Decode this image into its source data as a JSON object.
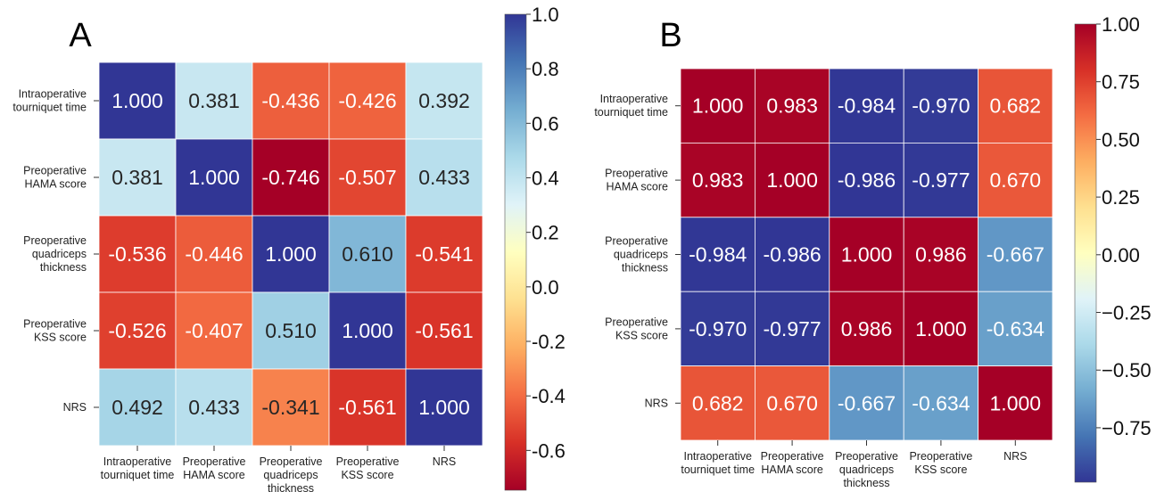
{
  "chart_data": [
    {
      "type": "heatmap",
      "panel_label": "A",
      "rows": [
        "Intraoperative tourniquet time",
        "Preoperative HAMA score",
        "Preoperative quadriceps thickness",
        "Preoperative KSS score",
        "NRS"
      ],
      "row_labels": [
        [
          "Intraoperative",
          "tourniquet time"
        ],
        [
          "Preoperative",
          "HAMA score"
        ],
        [
          "Preoperative",
          "quadriceps",
          "thickness"
        ],
        [
          "Preoperative",
          "KSS score"
        ],
        [
          "NRS"
        ]
      ],
      "col_labels": [
        [
          "Intraoperative",
          "tourniquet time"
        ],
        [
          "Preoperative",
          "HAMA score"
        ],
        [
          "Preoperative",
          "quadriceps",
          "thickness"
        ],
        [
          "Preoperative",
          "KSS score"
        ],
        [
          "NRS"
        ]
      ],
      "values": [
        [
          1.0,
          0.381,
          -0.436,
          -0.426,
          0.392
        ],
        [
          0.381,
          1.0,
          -0.746,
          -0.507,
          0.433
        ],
        [
          -0.536,
          -0.446,
          1.0,
          0.61,
          -0.541
        ],
        [
          -0.526,
          -0.407,
          0.51,
          1.0,
          -0.561
        ],
        [
          0.492,
          0.433,
          -0.341,
          -0.561,
          1.0
        ]
      ],
      "value_labels": [
        [
          "1.000",
          "0.381",
          "-0.436",
          "-0.426",
          "0.392"
        ],
        [
          "0.381",
          "1.000",
          "-0.746",
          "-0.507",
          "0.433"
        ],
        [
          "-0.536",
          "-0.446",
          "1.000",
          "0.610",
          "-0.541"
        ],
        [
          "-0.526",
          "-0.407",
          "0.510",
          "1.000",
          "-0.561"
        ],
        [
          "0.492",
          "0.433",
          "-0.341",
          "-0.561",
          "1.000"
        ]
      ],
      "colormap": "RdYlBu",
      "vmin": -0.746,
      "vmax": 1.0,
      "colorbar_ticks": [
        1.0,
        0.8,
        0.6,
        0.4,
        0.2,
        0.0,
        -0.2,
        -0.4,
        -0.6
      ],
      "colorbar_tick_labels": [
        "1.0",
        "0.8",
        "0.6",
        "0.4",
        "0.2",
        "0.0",
        "-0.2",
        "-0.4",
        "-0.6"
      ],
      "grid": true,
      "colorbar_position": "right"
    },
    {
      "type": "heatmap",
      "panel_label": "B",
      "rows": [
        "Intraoperative tourniquet time",
        "Preoperative HAMA score",
        "Preoperative quadriceps thickness",
        "Preoperative KSS score",
        "NRS"
      ],
      "row_labels": [
        [
          "Intraoperative",
          "tourniquet time"
        ],
        [
          "Preoperative",
          "HAMA score"
        ],
        [
          "Preoperative",
          "quadriceps",
          "thickness"
        ],
        [
          "Preoperative",
          "KSS score"
        ],
        [
          "NRS"
        ]
      ],
      "col_labels": [
        [
          "Intraoperative",
          "tourniquet time"
        ],
        [
          "Preoperative",
          "HAMA score"
        ],
        [
          "Preoperative",
          "quadriceps",
          "thickness"
        ],
        [
          "Preoperative",
          "KSS score"
        ],
        [
          "NRS"
        ]
      ],
      "values": [
        [
          1.0,
          0.983,
          -0.984,
          -0.97,
          0.682
        ],
        [
          0.983,
          1.0,
          -0.986,
          -0.977,
          0.67
        ],
        [
          -0.984,
          -0.986,
          1.0,
          0.986,
          -0.667
        ],
        [
          -0.97,
          -0.977,
          0.986,
          1.0,
          -0.634
        ],
        [
          0.682,
          0.67,
          -0.667,
          -0.634,
          1.0
        ]
      ],
      "value_labels": [
        [
          "1.000",
          "0.983",
          "-0.984",
          "-0.970",
          "0.682"
        ],
        [
          "0.983",
          "1.000",
          "-0.986",
          "-0.977",
          "0.670"
        ],
        [
          "-0.984",
          "-0.986",
          "1.000",
          "0.986",
          "-0.667"
        ],
        [
          "-0.970",
          "-0.977",
          "0.986",
          "1.000",
          "-0.634"
        ],
        [
          "0.682",
          "0.670",
          "-0.667",
          "-0.634",
          "1.000"
        ]
      ],
      "colormap": "RdYlBu_r",
      "vmin": -0.986,
      "vmax": 1.0,
      "colorbar_ticks": [
        1.0,
        0.75,
        0.5,
        0.25,
        0.0,
        -0.25,
        -0.5,
        -0.75
      ],
      "colorbar_tick_labels": [
        "1.00",
        "0.75",
        "0.50",
        "0.25",
        "0.00",
        "−0.25",
        "−0.50",
        "−0.75"
      ],
      "grid": true,
      "colorbar_position": "right"
    }
  ]
}
